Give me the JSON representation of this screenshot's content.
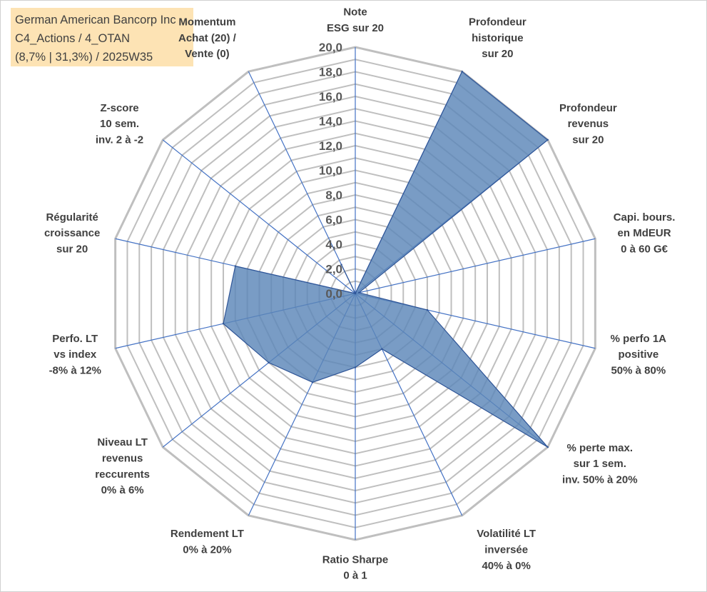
{
  "title_box": {
    "line1": "German American Bancorp Inc",
    "line2": "C4_Actions / 4_OTAN",
    "line3": "(8,7% | 31,3%) / 2025W35"
  },
  "colors": {
    "grid": "#bfbfbf",
    "spoke": "#4472c4",
    "fill": "#5b86b8",
    "stroke": "#2f5597",
    "title_bg": "#fde3b4"
  },
  "chart_data": {
    "type": "radar",
    "title": "",
    "rmax": 20,
    "tick_labels": [
      "0,0",
      "2,0",
      "4,0",
      "6,0",
      "8,0",
      "10,0",
      "12,0",
      "14,0",
      "16,0",
      "18,0",
      "20,0"
    ],
    "axes": [
      {
        "label": [
          "Note",
          "ESG sur 20"
        ],
        "value": 0
      },
      {
        "label": [
          "Profondeur",
          "historique",
          "sur 20"
        ],
        "value": 20
      },
      {
        "label": [
          "Profondeur",
          "revenus",
          "sur 20"
        ],
        "value": 20
      },
      {
        "label": [
          "Capi. bours.",
          "en MdEUR",
          "0 à 60 G€"
        ],
        "value": 0.3
      },
      {
        "label": [
          "% perfo 1A",
          "positive",
          "50% à 80%"
        ],
        "value": 6
      },
      {
        "label": [
          "% perte max.",
          "sur 1 sem.",
          "inv. 50% à 20%"
        ],
        "value": 20
      },
      {
        "label": [
          "Volatilité LT",
          "inversée",
          "40% à 0%"
        ],
        "value": 5
      },
      {
        "label": [
          "Ratio Sharpe",
          "0 à 1"
        ],
        "value": 6
      },
      {
        "label": [
          "Rendement LT",
          "0% à 20%"
        ],
        "value": 8
      },
      {
        "label": [
          "Niveau LT",
          "revenus",
          "reccurents",
          "0% à 6%"
        ],
        "value": 9
      },
      {
        "label": [
          "Perfo. LT",
          "vs index",
          "-8% à 12%"
        ],
        "value": 11
      },
      {
        "label": [
          "Régularité",
          "croissance",
          "sur 20"
        ],
        "value": 10
      },
      {
        "label": [
          "Z-score",
          "10 sem.",
          "inv. 2 à -2"
        ],
        "value": 0
      },
      {
        "label": [
          "Momentum",
          "Achat (20) /",
          "Vente (0)"
        ],
        "value": 2.6
      }
    ]
  }
}
